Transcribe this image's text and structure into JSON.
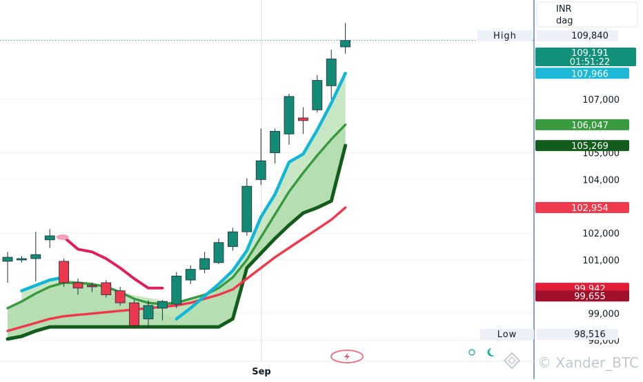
{
  "chart_data": {
    "type": "candlestick",
    "title": "",
    "currency_label": "INR",
    "interval_label": "dag",
    "x_axis": {
      "tick_labels": [
        {
          "label": "Sep",
          "index": 18.5
        }
      ]
    },
    "y_axis": {
      "range": [
        97500,
        110700
      ],
      "tick_labels": [
        {
          "value": 98000,
          "label": "98,000"
        },
        {
          "value": 99000,
          "label": "99,000"
        },
        {
          "value": 101000,
          "label": "101,000"
        },
        {
          "value": 102000,
          "label": "102,000"
        },
        {
          "value": 104000,
          "label": "104,000"
        },
        {
          "value": 105000,
          "label": "105,000"
        },
        {
          "value": 107000,
          "label": "107,000"
        }
      ]
    },
    "high": {
      "label": "High",
      "value": 109840,
      "text": "109,840"
    },
    "low": {
      "label": "Low",
      "value": 98516,
      "text": "98,516"
    },
    "last_price": {
      "value": 109191,
      "text": "109,191",
      "countdown": "01:51:22",
      "color": "#12917a"
    },
    "price_badges": [
      {
        "value": 107966,
        "text": "107,966",
        "color": "#1cb8d6"
      },
      {
        "value": 106047,
        "text": "106,047",
        "color": "#3a9a3f"
      },
      {
        "value": 105269,
        "text": "105,269",
        "color": "#145c1c"
      },
      {
        "value": 102954,
        "text": "102,954",
        "color": "#ee3a4c"
      },
      {
        "value": 99942,
        "text": "99,942",
        "color": "#e01e38"
      },
      {
        "value": 99655,
        "text": "99,655",
        "color": "#a0102a"
      }
    ],
    "candles": [
      {
        "o": 100950,
        "h": 101300,
        "l": 100150,
        "c": 101100
      },
      {
        "o": 101000,
        "h": 101150,
        "l": 100900,
        "c": 101050
      },
      {
        "o": 101050,
        "h": 102050,
        "l": 100200,
        "c": 101200
      },
      {
        "o": 101750,
        "h": 102150,
        "l": 101450,
        "c": 101900
      },
      {
        "o": 100950,
        "h": 101050,
        "l": 100000,
        "c": 100150
      },
      {
        "o": 100150,
        "h": 100300,
        "l": 99700,
        "c": 99950
      },
      {
        "o": 100050,
        "h": 100150,
        "l": 99800,
        "c": 100000
      },
      {
        "o": 100150,
        "h": 100250,
        "l": 99600,
        "c": 99700
      },
      {
        "o": 99850,
        "h": 100000,
        "l": 99300,
        "c": 99400
      },
      {
        "o": 99400,
        "h": 99500,
        "l": 98500,
        "c": 98550
      },
      {
        "o": 98800,
        "h": 99500,
        "l": 98450,
        "c": 99300
      },
      {
        "o": 99200,
        "h": 99500,
        "l": 98750,
        "c": 99450
      },
      {
        "o": 99350,
        "h": 100550,
        "l": 99200,
        "c": 100400
      },
      {
        "o": 100250,
        "h": 100800,
        "l": 100100,
        "c": 100650
      },
      {
        "o": 100650,
        "h": 101300,
        "l": 100500,
        "c": 101050
      },
      {
        "o": 100900,
        "h": 101800,
        "l": 100850,
        "c": 101650
      },
      {
        "o": 101500,
        "h": 102200,
        "l": 101350,
        "c": 102050
      },
      {
        "o": 102050,
        "h": 104050,
        "l": 101900,
        "c": 103750
      },
      {
        "o": 104000,
        "h": 105900,
        "l": 103800,
        "c": 104700
      },
      {
        "o": 105000,
        "h": 105900,
        "l": 104600,
        "c": 105800
      },
      {
        "o": 105700,
        "h": 107200,
        "l": 105300,
        "c": 107100
      },
      {
        "o": 106300,
        "h": 106700,
        "l": 105700,
        "c": 106200
      },
      {
        "o": 106600,
        "h": 107900,
        "l": 106500,
        "c": 107700
      },
      {
        "o": 107500,
        "h": 108850,
        "l": 107000,
        "c": 108500
      },
      {
        "o": 108950,
        "h": 109840,
        "l": 108700,
        "c": 109191
      }
    ],
    "series": [
      {
        "role": "fast-ema",
        "color": "#12b7d8",
        "values": [
          null,
          99850,
          100050,
          100250,
          100350,
          null,
          null,
          null,
          null,
          null,
          null,
          null,
          98800,
          99200,
          99650,
          100100,
          100600,
          101350,
          102600,
          103450,
          104650,
          104950,
          105850,
          106850,
          107966
        ]
      },
      {
        "role": "medium-ema",
        "color": "#3a9a3f",
        "values": [
          99200,
          99450,
          99750,
          100000,
          100150,
          100150,
          100100,
          100000,
          99800,
          99550,
          99400,
          99350,
          99400,
          99550,
          99700,
          99950,
          100350,
          101000,
          101850,
          102700,
          103550,
          104250,
          104900,
          105500,
          106047
        ]
      },
      {
        "role": "slow-line",
        "color": "#145c1c",
        "values": [
          98050,
          98150,
          98350,
          98500,
          98500,
          98500,
          98500,
          98500,
          98500,
          98500,
          98500,
          98500,
          98500,
          98500,
          98500,
          98500,
          98800,
          100700,
          101250,
          101800,
          102300,
          102750,
          102950,
          103200,
          105269
        ]
      },
      {
        "role": "trend-line",
        "color": "#ef3a4d",
        "values": [
          98350,
          98500,
          98650,
          98800,
          98900,
          98950,
          99000,
          99050,
          99100,
          99150,
          99200,
          99250,
          99300,
          99400,
          99550,
          99700,
          99900,
          100300,
          100700,
          101100,
          101450,
          101800,
          102150,
          102500,
          102954
        ]
      },
      {
        "role": "resistance-line",
        "color": "#e0205a",
        "values": [
          null,
          null,
          null,
          null,
          101850,
          101400,
          101300,
          101050,
          100700,
          100300,
          99950,
          99950,
          null,
          null,
          null,
          null,
          null,
          null,
          null,
          null,
          null,
          null,
          null,
          null,
          null
        ]
      }
    ],
    "grid": true,
    "legend": "none",
    "watermark": "© Xander_BTC"
  }
}
